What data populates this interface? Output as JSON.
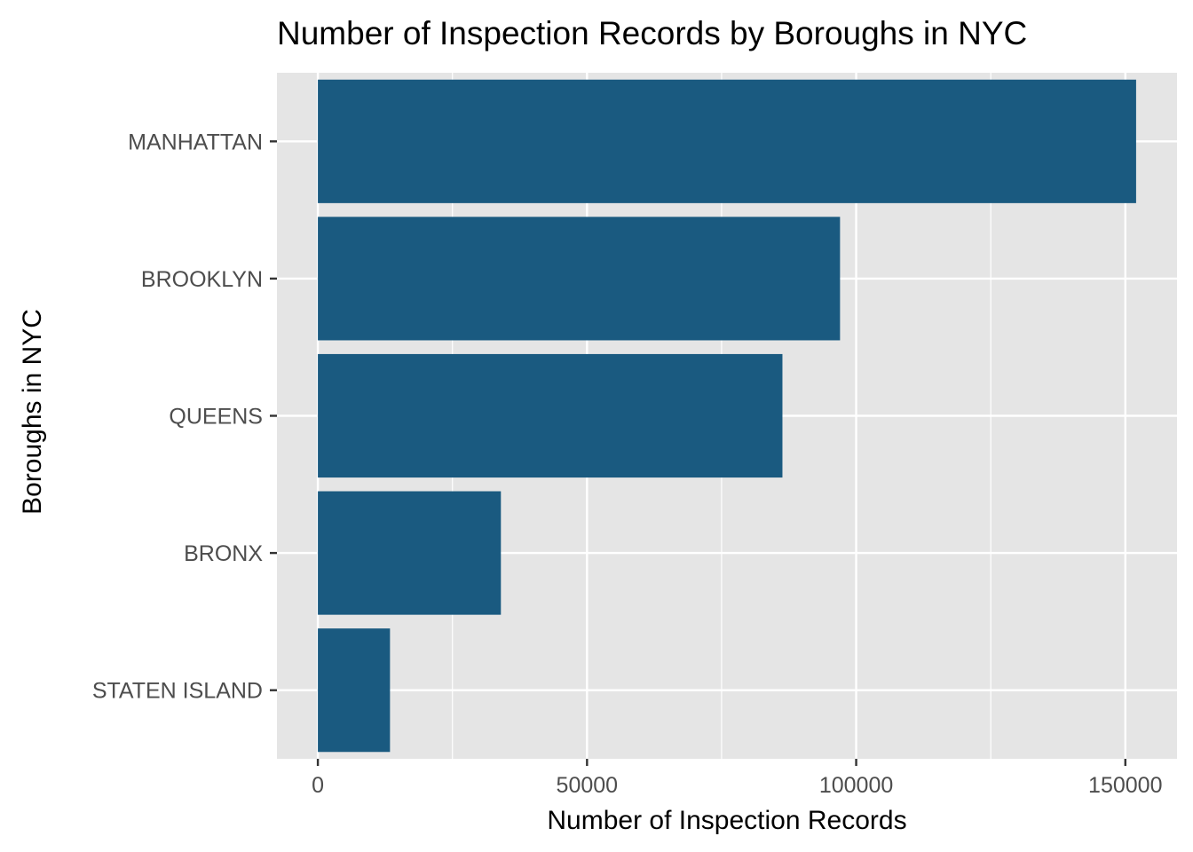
{
  "chart_data": {
    "type": "bar",
    "orientation": "horizontal",
    "title": "Number of Inspection Records by Boroughs in NYC",
    "xlabel": "Number of Inspection Records",
    "ylabel": "Boroughs in NYC",
    "categories": [
      "MANHATTAN",
      "BROOKLYN",
      "QUEENS",
      "BRONX",
      "STATEN ISLAND"
    ],
    "values": [
      152000,
      97000,
      86300,
      34000,
      13400
    ],
    "x_ticks": [
      0,
      50000,
      100000,
      150000
    ],
    "x_tick_labels": [
      "0",
      "50000",
      "100000",
      "150000"
    ],
    "xlim": [
      -7600,
      159600
    ],
    "grid": true,
    "legend": "none",
    "colors": {
      "bar": "#1a5a80",
      "panel": "#e5e5e5",
      "grid": "#ffffff"
    }
  }
}
